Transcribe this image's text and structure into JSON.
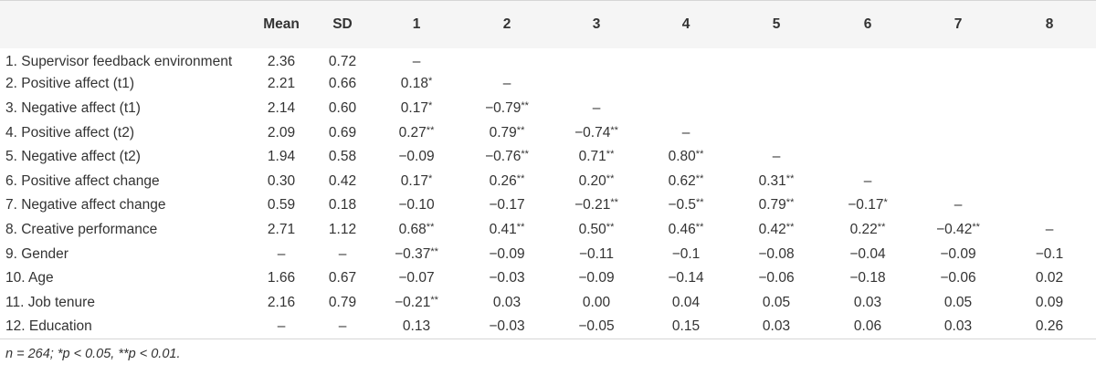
{
  "table": {
    "headers": [
      "",
      "Mean",
      "SD",
      "1",
      "2",
      "3",
      "4",
      "5",
      "6",
      "7",
      "8"
    ],
    "rows": [
      [
        "1. Supervisor feedback environment",
        "2.36",
        "0.72",
        "–",
        "",
        "",
        "",
        "",
        "",
        "",
        ""
      ],
      [
        "2. Positive affect (t1)",
        "2.21",
        "0.66",
        "0.18*",
        "–",
        "",
        "",
        "",
        "",
        "",
        ""
      ],
      [
        "3. Negative affect (t1)",
        "2.14",
        "0.60",
        "0.17*",
        "−0.79**",
        "–",
        "",
        "",
        "",
        "",
        ""
      ],
      [
        "4. Positive affect (t2)",
        "2.09",
        "0.69",
        "0.27**",
        "0.79**",
        "−0.74**",
        "–",
        "",
        "",
        "",
        ""
      ],
      [
        "5. Negative affect (t2)",
        "1.94",
        "0.58",
        "−0.09",
        "−0.76**",
        "0.71**",
        "0.80**",
        "–",
        "",
        "",
        ""
      ],
      [
        "6. Positive affect change",
        "0.30",
        "0.42",
        "0.17*",
        "0.26**",
        "0.20**",
        "0.62**",
        "0.31**",
        "–",
        "",
        ""
      ],
      [
        "7. Negative affect change",
        "0.59",
        "0.18",
        "−0.10",
        "−0.17",
        "−0.21**",
        "−0.5**",
        "0.79**",
        "−0.17*",
        "–",
        ""
      ],
      [
        "8. Creative performance",
        "2.71",
        "1.12",
        "0.68**",
        "0.41**",
        "0.50**",
        "0.46**",
        "0.42**",
        "0.22**",
        "−0.42**",
        "–"
      ],
      [
        "9. Gender",
        "–",
        "–",
        "−0.37**",
        "−0.09",
        "−0.11",
        "−0.1",
        "−0.08",
        "−0.04",
        "−0.09",
        "−0.1"
      ],
      [
        "10. Age",
        "1.66",
        "0.67",
        "−0.07",
        "−0.03",
        "−0.09",
        "−0.14",
        "−0.06",
        "−0.18",
        "−0.06",
        "0.02"
      ],
      [
        "11. Job tenure",
        "2.16",
        "0.79",
        "−0.21**",
        "0.03",
        "0.00",
        "0.04",
        "0.05",
        "0.03",
        "0.05",
        "0.09"
      ],
      [
        "12. Education",
        "–",
        "–",
        "0.13",
        "−0.03",
        "−0.05",
        "0.15",
        "0.03",
        "0.06",
        "0.03",
        "0.26"
      ]
    ]
  },
  "note": "n = 264; *p < 0.05, **p < 0.01."
}
